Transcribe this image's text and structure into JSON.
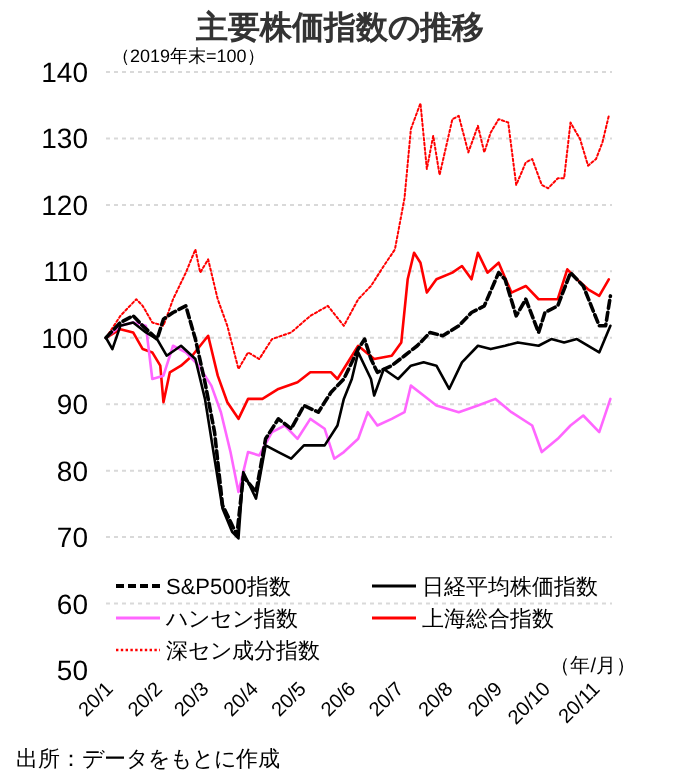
{
  "chart_data": {
    "type": "line",
    "title": "主要株価指数の推移",
    "annotations": [
      "（2019年末=100）",
      "（年/月）",
      "出所：データをもとに作成"
    ],
    "xlim": [
      "--01-01",
      "--11-13"
    ],
    "xticks": [
      {
        "value": "--01-01",
        "label": "20/1"
      },
      {
        "value": "--02-01",
        "label": "20/2"
      },
      {
        "value": "--03-01",
        "label": "20/3"
      },
      {
        "value": "--04-01",
        "label": "20/4"
      },
      {
        "value": "--05-01",
        "label": "20/5"
      },
      {
        "value": "--06-01",
        "label": "20/6"
      },
      {
        "value": "--07-01",
        "label": "20/7"
      },
      {
        "value": "--08-01",
        "label": "20/8"
      },
      {
        "value": "--09-01",
        "label": "20/9"
      },
      {
        "value": "--10-01",
        "label": "20/10"
      },
      {
        "value": "--11-01",
        "label": "20/11"
      }
    ],
    "ylim": [
      50,
      140
    ],
    "yticks": [
      50,
      60,
      70,
      80,
      90,
      100,
      110,
      120,
      130,
      140
    ],
    "grid": "y",
    "legend": "bottom",
    "series": [
      {
        "name": "S&P500指数",
        "color": "#000000",
        "line_style": "dashed",
        "x": [
          "--01-01",
          "--01-10",
          "--01-18",
          "--01-24",
          "--02-02",
          "--02-06",
          "--02-12",
          "--02-20",
          "--02-26",
          "--03-03",
          "--03-09",
          "--03-14",
          "--03-19",
          "--03-23",
          "--03-27",
          "--04-04",
          "--04-10",
          "--04-18",
          "--04-26",
          "--05-04",
          "--05-13",
          "--05-21",
          "--05-29",
          "--06-07",
          "--06-11",
          "--06-15",
          "--06-19",
          "--06-28",
          "--07-06",
          "--07-14",
          "--07-22",
          "--07-30",
          "--08-09",
          "--08-17",
          "--08-25",
          "--09-03",
          "--09-07",
          "--09-14",
          "--09-20",
          "--09-28",
          "--10-02",
          "--10-10",
          "--10-18",
          "--10-26",
          "--11-05",
          "--11-09",
          "--11-12"
        ],
        "values": [
          100,
          102.3,
          103.3,
          101.8,
          99.8,
          102.8,
          103.8,
          104.8,
          99.8,
          93.3,
          85.8,
          74.8,
          72.3,
          70.3,
          79.1,
          76.8,
          84.8,
          87.8,
          86.3,
          89.8,
          88.8,
          91.8,
          93.8,
          98.3,
          99.8,
          96.8,
          94.8,
          95.8,
          97.3,
          98.8,
          100.8,
          100.3,
          101.8,
          103.8,
          104.8,
          109.8,
          108.8,
          103.3,
          105.8,
          100.8,
          103.8,
          104.8,
          109.8,
          107.8,
          101.8,
          101.8,
          106.3
        ]
      },
      {
        "name": "日経平均株価指数",
        "color": "#000000",
        "line_style": "solid",
        "x": [
          "--01-01",
          "--01-05",
          "--01-10",
          "--01-18",
          "--01-26",
          "--02-02",
          "--02-08",
          "--02-17",
          "--02-26",
          "--03-03",
          "--03-09",
          "--03-14",
          "--03-20",
          "--03-24",
          "--03-27",
          "--04-04",
          "--04-10",
          "--04-18",
          "--04-26",
          "--05-04",
          "--05-17",
          "--05-25",
          "--05-29",
          "--06-03",
          "--06-07",
          "--06-15",
          "--06-17",
          "--06-23",
          "--07-02",
          "--07-10",
          "--07-18",
          "--07-26",
          "--08-03",
          "--08-11",
          "--08-21",
          "--08-29",
          "--09-07",
          "--09-15",
          "--09-28",
          "--10-06",
          "--10-14",
          "--10-22",
          "--11-05",
          "--11-12"
        ],
        "values": [
          100,
          98.3,
          101.8,
          102.3,
          100.8,
          99.8,
          97.3,
          98.8,
          96.8,
          90.8,
          81.8,
          74.3,
          70.8,
          69.8,
          79.8,
          75.8,
          83.8,
          82.8,
          81.8,
          83.8,
          83.8,
          86.8,
          90.8,
          93.8,
          97.8,
          93.8,
          91.3,
          95.3,
          93.8,
          95.8,
          96.3,
          95.8,
          92.3,
          96.3,
          98.8,
          98.3,
          98.8,
          99.3,
          98.8,
          99.8,
          99.3,
          99.8,
          97.8,
          101.8
        ]
      },
      {
        "name": "ハンセン指数",
        "color": "#ff66ff",
        "line_style": "solid",
        "x": [
          "--01-01",
          "--01-10",
          "--01-18",
          "--01-26",
          "--01-30",
          "--02-06",
          "--02-12",
          "--02-20",
          "--02-28",
          "--03-07",
          "--03-13",
          "--03-19",
          "--03-24",
          "--03-30",
          "--04-06",
          "--04-14",
          "--04-22",
          "--04-30",
          "--05-08",
          "--05-17",
          "--05-23",
          "--05-29",
          "--06-07",
          "--06-13",
          "--06-19",
          "--06-28",
          "--07-06",
          "--07-10",
          "--07-18",
          "--07-26",
          "--08-09",
          "--08-21",
          "--09-01",
          "--09-11",
          "--09-24",
          "--09-30",
          "--10-10",
          "--10-18",
          "--10-26",
          "--11-05",
          "--11-12"
        ],
        "values": [
          100,
          101.8,
          102.3,
          101.8,
          93.8,
          94.3,
          98.8,
          97.8,
          95.8,
          92.8,
          88.8,
          82.8,
          76.8,
          82.8,
          82.3,
          85.8,
          86.8,
          84.8,
          87.8,
          86.3,
          81.8,
          82.8,
          84.8,
          88.8,
          86.8,
          87.8,
          88.8,
          92.8,
          91.3,
          89.8,
          88.8,
          89.8,
          90.8,
          88.8,
          86.8,
          82.8,
          84.8,
          86.8,
          88.3,
          85.8,
          90.8
        ]
      },
      {
        "name": "上海総合指数",
        "color": "#ff0000",
        "line_style": "solid",
        "x": [
          "--01-01",
          "--01-10",
          "--01-18",
          "--01-24",
          "--01-30",
          "--02-04",
          "--02-06",
          "--02-10",
          "--02-17",
          "--02-24",
          "--02-29",
          "--03-05",
          "--03-11",
          "--03-17",
          "--03-24",
          "--03-30",
          "--04-08",
          "--04-18",
          "--04-30",
          "--05-08",
          "--05-21",
          "--05-25",
          "--06-07",
          "--06-17",
          "--06-28",
          "--07-04",
          "--07-08",
          "--07-12",
          "--07-16",
          "--07-20",
          "--07-26",
          "--08-05",
          "--08-11",
          "--08-17",
          "--08-21",
          "--08-27",
          "--09-03",
          "--09-11",
          "--09-20",
          "--09-28",
          "--10-10",
          "--10-16",
          "--10-22",
          "--10-29",
          "--11-05",
          "--11-11"
        ],
        "values": [
          100,
          101.3,
          100.8,
          98.3,
          97.8,
          95.8,
          90.3,
          94.8,
          95.8,
          97.3,
          98.8,
          100.3,
          94.3,
          90.3,
          87.8,
          90.8,
          90.8,
          92.3,
          93.3,
          94.8,
          94.8,
          93.8,
          98.8,
          96.8,
          97.3,
          99.3,
          108.8,
          112.8,
          111.3,
          106.8,
          108.8,
          109.8,
          110.8,
          108.8,
          112.8,
          109.8,
          111.3,
          106.8,
          107.8,
          105.8,
          105.8,
          110.3,
          108.8,
          107.3,
          106.3,
          108.8
        ]
      },
      {
        "name": "深セン成分指数",
        "color": "#ff0000",
        "line_style": "dotted",
        "x": [
          "--01-01",
          "--01-10",
          "--01-20",
          "--01-24",
          "--01-30",
          "--02-06",
          "--02-12",
          "--02-20",
          "--02-26",
          "--02-29",
          "--03-05",
          "--03-11",
          "--03-17",
          "--03-24",
          "--03-30",
          "--04-06",
          "--04-14",
          "--04-26",
          "--05-08",
          "--05-19",
          "--05-29",
          "--06-07",
          "--06-15",
          "--06-23",
          "--06-30",
          "--07-06",
          "--07-10",
          "--07-16",
          "--07-20",
          "--07-24",
          "--07-28",
          "--08-05",
          "--08-09",
          "--08-15",
          "--08-21",
          "--08-25",
          "--08-29",
          "--09-03",
          "--09-09",
          "--09-14",
          "--09-20",
          "--09-24",
          "--09-30",
          "--10-04",
          "--10-10",
          "--10-14",
          "--10-18",
          "--10-24",
          "--10-29",
          "--11-03",
          "--11-07",
          "--11-11"
        ],
        "values": [
          100,
          103.3,
          105.8,
          104.8,
          102.3,
          101.8,
          105.8,
          109.8,
          113.3,
          109.8,
          111.8,
          105.8,
          101.8,
          95.3,
          97.8,
          96.8,
          99.8,
          100.8,
          103.3,
          104.8,
          101.8,
          105.8,
          107.8,
          110.8,
          113.3,
          121,
          131.4,
          135.3,
          125.4,
          130.4,
          124.5,
          132.9,
          133.4,
          127.9,
          131.9,
          127.9,
          130.9,
          132.9,
          132.4,
          123,
          126.4,
          126.9,
          123,
          122.5,
          124,
          124,
          132.4,
          129.9,
          125.9,
          126.9,
          129.4,
          133.4
        ]
      }
    ]
  }
}
